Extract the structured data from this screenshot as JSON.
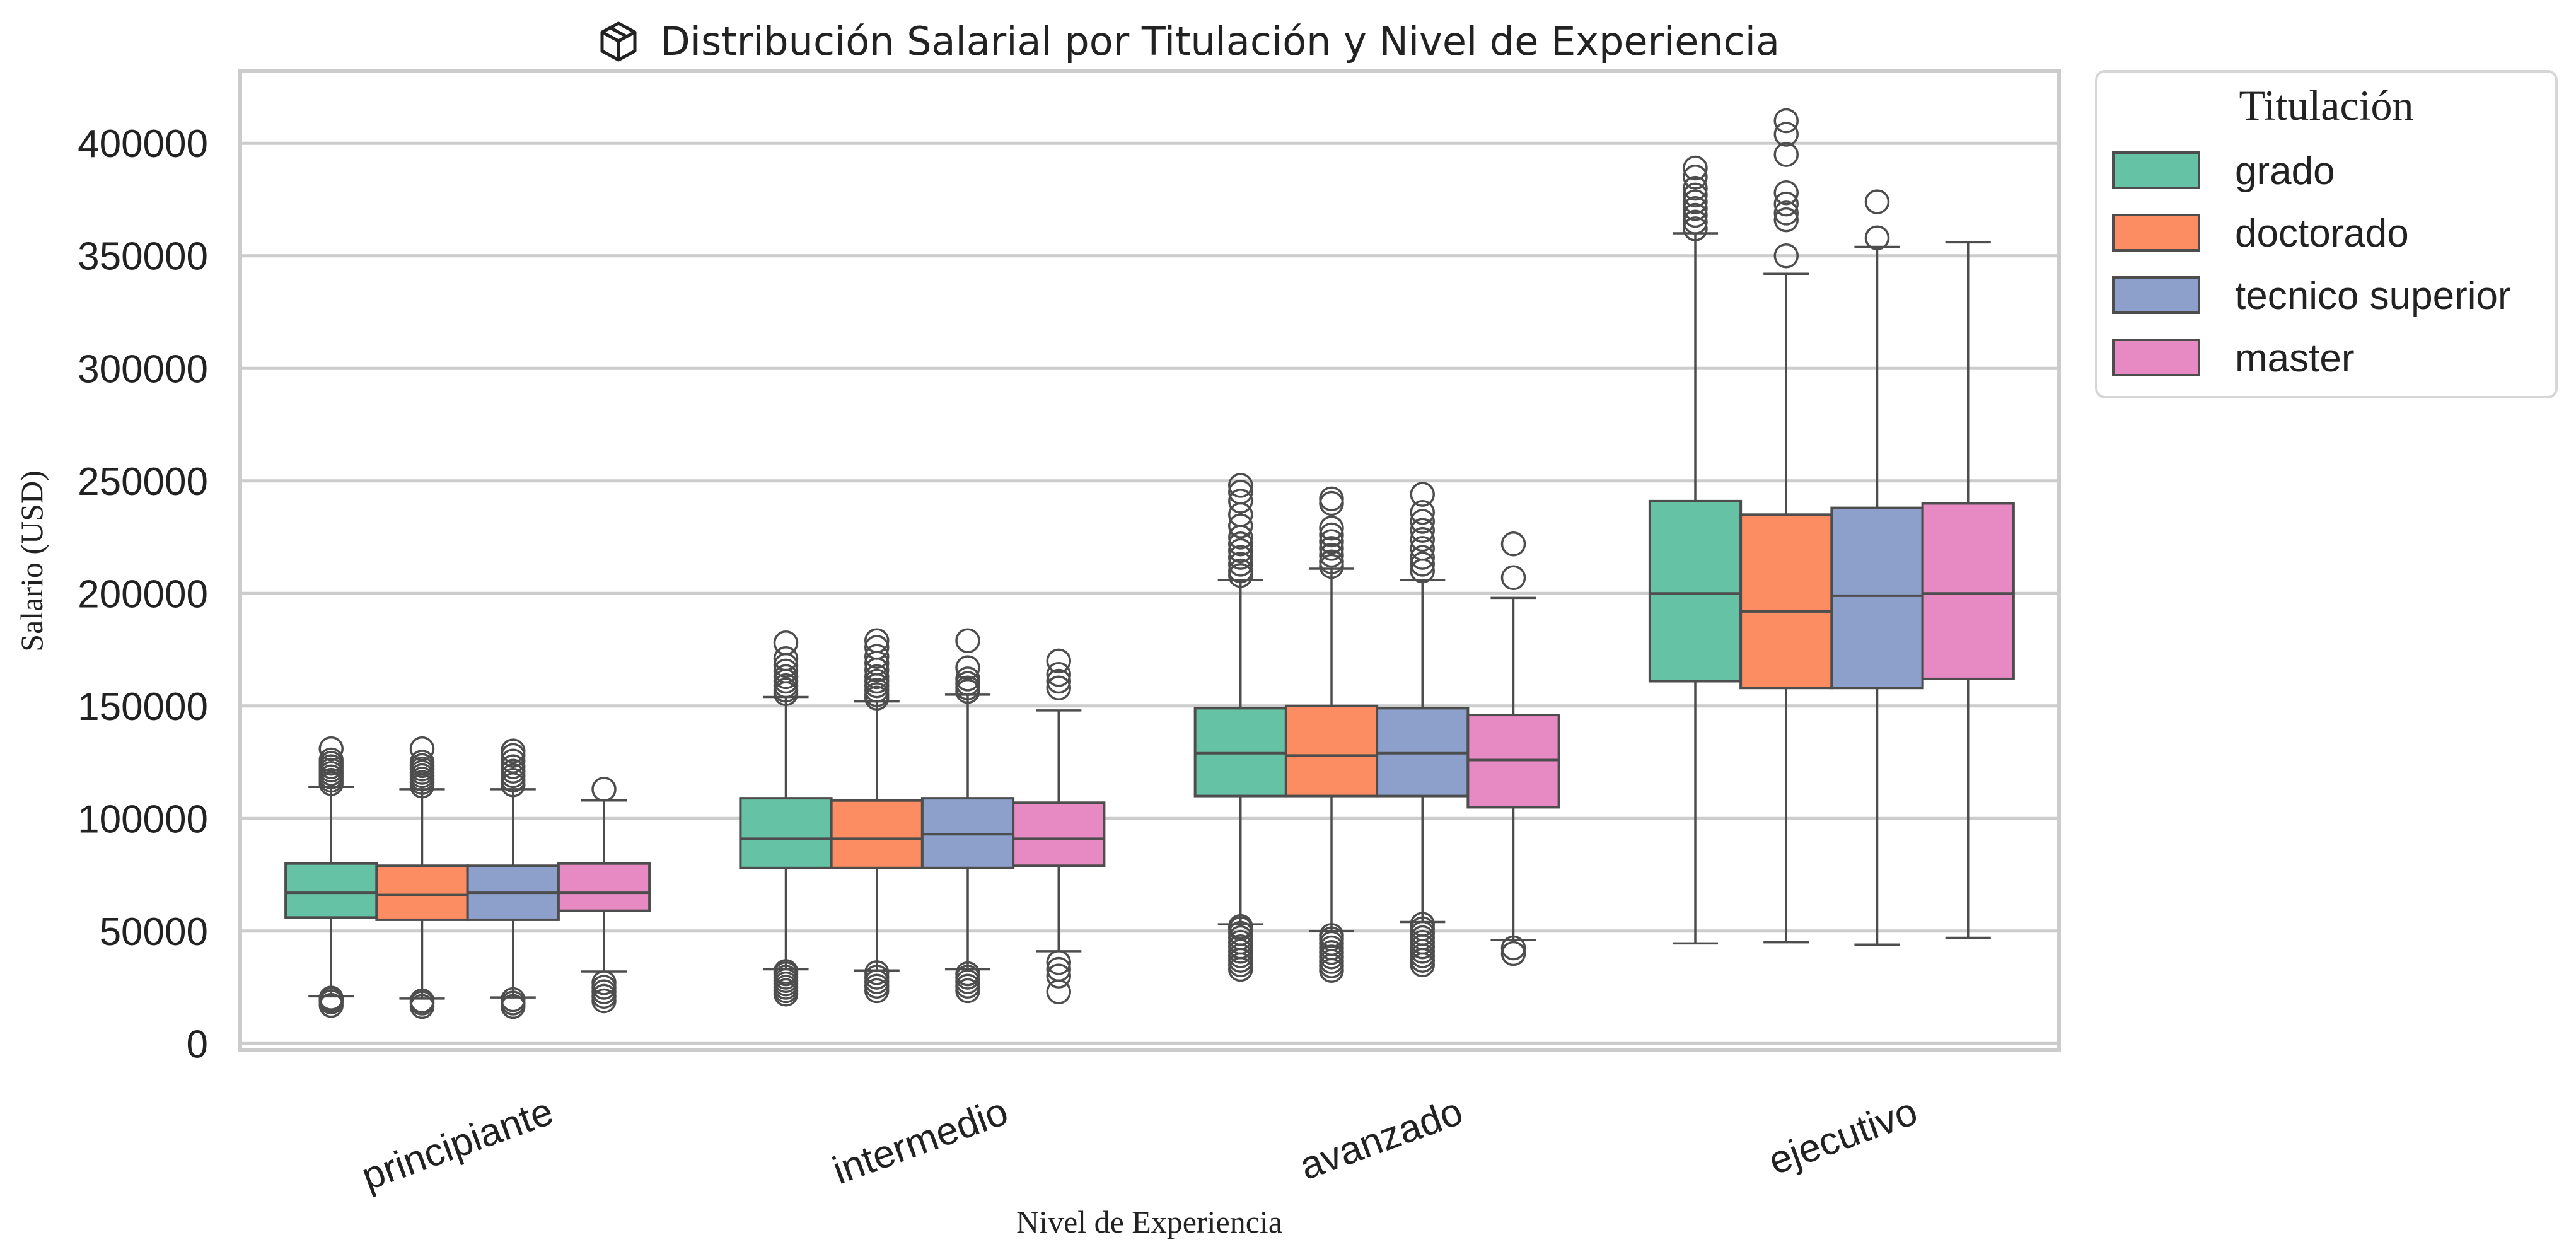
{
  "title": "Distribución Salarial por Titulación y Nivel de Experiencia",
  "title_icon": "package-box-icon",
  "chart_data": {
    "type": "box",
    "title": "Distribución Salarial por Titulación y Nivel de Experiencia",
    "xlabel": "Nivel de Experiencia",
    "ylabel": "Salario (USD)",
    "ylim": [
      -3000,
      432000
    ],
    "yticks": [
      0,
      50000,
      100000,
      150000,
      200000,
      250000,
      300000,
      350000,
      400000
    ],
    "ytick_labels": [
      "0",
      "50000",
      "100000",
      "150000",
      "200000",
      "250000",
      "300000",
      "350000",
      "400000"
    ],
    "grid": "horizontal",
    "legend": {
      "title": "Titulación",
      "placement": "outside-top-right"
    },
    "categories": [
      "principiante",
      "intermedio",
      "avanzado",
      "ejecutivo"
    ],
    "series": [
      {
        "name": "grado",
        "color": "#66c2a5",
        "boxes": [
          {
            "whislo": 21000,
            "q1": 56000,
            "med": 67000,
            "q3": 80000,
            "whishi": 114000,
            "fliers": [
              17000,
              18500,
              19500,
              20200,
              115500,
              117000,
              118500,
              120000,
              121500,
              123000,
              124500,
              126000,
              131000
            ]
          },
          {
            "whislo": 33000,
            "q1": 78000,
            "med": 91000,
            "q3": 109000,
            "whishi": 154000,
            "fliers": [
              22000,
              23500,
              25000,
              26500,
              28000,
              29500,
              31000,
              32000,
              155500,
              157000,
              159000,
              161000,
              163000,
              165500,
              168000,
              171000,
              178000
            ]
          },
          {
            "whislo": 53000,
            "q1": 110000,
            "med": 129000,
            "q3": 149000,
            "whishi": 206000,
            "fliers": [
              33000,
              35000,
              37000,
              39000,
              41000,
              43000,
              45000,
              47000,
              49000,
              51000,
              52000,
              208000,
              210000,
              213000,
              216000,
              219000,
              222000,
              225000,
              230000,
              235000,
              241000,
              245000,
              248000
            ]
          },
          {
            "whislo": 44500,
            "q1": 161000,
            "med": 200000,
            "q3": 241000,
            "whishi": 360000,
            "fliers": [
              362000,
              365000,
              368000,
              371000,
              374000,
              377000,
              380000,
              385000,
              389000
            ]
          }
        ]
      },
      {
        "name": "doctorado",
        "color": "#fc8d62",
        "boxes": [
          {
            "whislo": 20000,
            "q1": 55000,
            "med": 66000,
            "q3": 79000,
            "whishi": 113000,
            "fliers": [
              16500,
              18000,
              19000,
              114500,
              116000,
              117500,
              119000,
              120500,
              122000,
              123500,
              125000,
              131000
            ]
          },
          {
            "whislo": 32500,
            "q1": 78000,
            "med": 91000,
            "q3": 108000,
            "whishi": 152000,
            "fliers": [
              23500,
              25500,
              27500,
              29500,
              31500,
              153500,
              155000,
              157000,
              159000,
              161000,
              163000,
              166000,
              169000,
              172000,
              176000,
              179000
            ]
          },
          {
            "whislo": 50000,
            "q1": 110000,
            "med": 128000,
            "q3": 150000,
            "whishi": 211000,
            "fliers": [
              32500,
              34500,
              36500,
              38500,
              40500,
              42500,
              44500,
              46500,
              48000,
              212000,
              214000,
              217000,
              220000,
              223000,
              226000,
              229000,
              240000,
              242000
            ]
          },
          {
            "whislo": 45000,
            "q1": 158000,
            "med": 192000,
            "q3": 235000,
            "whishi": 342000,
            "fliers": [
              350000,
              366000,
              369000,
              373000,
              378000,
              395000,
              404000,
              410000
            ]
          }
        ]
      },
      {
        "name": "tecnico superior",
        "color": "#8da0cb",
        "boxes": [
          {
            "whislo": 20500,
            "q1": 55000,
            "med": 67000,
            "q3": 79000,
            "whishi": 113000,
            "fliers": [
              16500,
              18000,
              19500,
              115000,
              117000,
              119000,
              121000,
              123000,
              125500,
              128000,
              130000
            ]
          },
          {
            "whislo": 33000,
            "q1": 78000,
            "med": 93000,
            "q3": 109000,
            "whishi": 155000,
            "fliers": [
              23500,
              25500,
              27500,
              29500,
              31000,
              156500,
              158000,
              160000,
              162000,
              167000,
              179000
            ]
          },
          {
            "whislo": 54000,
            "q1": 110000,
            "med": 129000,
            "q3": 149000,
            "whishi": 206000,
            "fliers": [
              35000,
              37000,
              39000,
              41000,
              43000,
              45000,
              47000,
              49000,
              51000,
              53000,
              210000,
              213000,
              216000,
              220000,
              224000,
              228000,
              232000,
              236000,
              244000
            ]
          },
          {
            "whislo": 44000,
            "q1": 158000,
            "med": 199000,
            "q3": 238000,
            "whishi": 354000,
            "fliers": [
              358000,
              374000
            ]
          }
        ]
      },
      {
        "name": "master",
        "color": "#e78ac3",
        "boxes": [
          {
            "whislo": 32000,
            "q1": 59000,
            "med": 67000,
            "q3": 80000,
            "whishi": 108000,
            "fliers": [
              19000,
              21000,
              23000,
              25000,
              27000,
              113000
            ]
          },
          {
            "whislo": 41000,
            "q1": 79000,
            "med": 91000,
            "q3": 107000,
            "whishi": 148000,
            "fliers": [
              23000,
              30000,
              33000,
              36000,
              158000,
              161000,
              164000,
              170000
            ]
          },
          {
            "whislo": 46000,
            "q1": 105000,
            "med": 126000,
            "q3": 146000,
            "whishi": 198000,
            "fliers": [
              40000,
              42500,
              207000,
              222000
            ]
          },
          {
            "whislo": 47000,
            "q1": 162000,
            "med": 200000,
            "q3": 240000,
            "whishi": 356000,
            "fliers": []
          }
        ]
      }
    ]
  }
}
